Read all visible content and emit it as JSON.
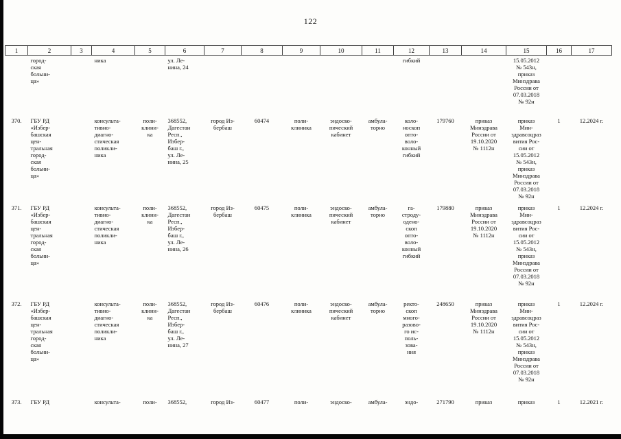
{
  "page": {
    "number": "122"
  },
  "table": {
    "header": [
      "1",
      "2",
      "3",
      "4",
      "5",
      "6",
      "7",
      "8",
      "9",
      "10",
      "11",
      "12",
      "13",
      "14",
      "15",
      "16",
      "17"
    ],
    "rows": [
      {
        "name": "row-369-continued",
        "cells": [
          "",
          "город-\nская\nбольни-\nца»",
          "",
          "ника",
          "",
          "ул. Ле-\nнина, 24",
          "",
          "",
          "",
          "",
          "",
          "гибкий",
          "",
          "",
          "15.05.2012\n№ 543н,\nприказ\nМинздрава\nРоссии от\n07.03.2018\n№ 92н",
          "",
          ""
        ]
      },
      {
        "name": "row-370",
        "cells": [
          "370.",
          "ГБУ РД\n«Избер-\nбашская\nцен-\nтральная\nгород-\nская\nбольни-\nца»",
          "",
          "консульта-\nтивно-\nдиагно-\nстическая\nполикли-\nника",
          "поли-\nклини-\nка",
          "368552,\nДагестан\nРесп.,\nИзбер-\nбаш г.,\nул. Ле-\nнина, 25",
          "город Из-\nбербаш",
          "60474",
          "поли-\nклиника",
          "эндоско-\nпический\nкабинет",
          "амбула-\nторно",
          "коло-\nноскоп\nопто-\nволо-\nконный\nгибкий",
          "179760",
          "приказ\nМинздрава\nРоссии от\n19.10.2020\n№ 1112н",
          "приказ\nМин-\nздравсоцраз\nвития Рос-\nсии от\n15.05.2012\n№ 543н,\nприказ\nМинздрава\nРоссии от\n07.03.2018\n№ 92н",
          "1",
          "12.2024 г."
        ]
      },
      {
        "name": "row-371",
        "cells": [
          "371.",
          "ГБУ РД\n«Избер-\nбашская\nцен-\nтральная\nгород-\nская\nбольни-\nца»",
          "",
          "консульта-\nтивно-\nдиагно-\nстическая\nполикли-\nника",
          "поли-\nклини-\nка",
          "368552,\nДагестан\nРесп.,\nИзбер-\nбаш г.,\nул. Ле-\nнина, 26",
          "город Из-\nбербаш",
          "60475",
          "поли-\nклиника",
          "эндоско-\nпический\nкабинет",
          "амбула-\nторно",
          "га-\nстроду-\nодено-\nскоп\nопто-\nволо-\nконный\nгибкий",
          "179880",
          "приказ\nМинздрава\nРоссии от\n19.10.2020\n№ 1112н",
          "приказ\nМин-\nздравсоцраз\nвития Рос-\nсии от\n15.05.2012\n№ 543н,\nприказ\nМинздрава\nРоссии от\n07.03.2018\n№ 92н",
          "1",
          "12.2024 г."
        ]
      },
      {
        "name": "row-372",
        "cells": [
          "372.",
          "ГБУ РД\n«Избер-\nбашская\nцен-\nтральная\nгород-\nская\nбольни-\nца»",
          "",
          "консульта-\nтивно-\nдиагно-\nстическая\nполикли-\nника",
          "поли-\nклини-\nка",
          "368552,\nДагестан\nРесп.,\nИзбер-\nбаш г.,\nул. Ле-\nнина, 27",
          "город Из-\nбербаш",
          "60476",
          "поли-\nклиника",
          "эндоско-\nпический\nкабинет",
          "амбула-\nторно",
          "ректо-\nскоп\nмного-\nразово-\nго ис-\nполь-\nзова-\nния",
          "248650",
          "приказ\nМинздрава\nРоссии от\n19.10.2020\n№ 1112н",
          "приказ\nМин-\nздравсоцраз\nвития Рос-\nсии от\n15.05.2012\n№ 543н,\nприказ\nМинздрава\nРоссии от\n07.03.2018\n№ 92н",
          "1",
          "12.2024 г."
        ]
      },
      {
        "name": "row-373-partial",
        "cells": [
          "373.",
          "ГБУ РД",
          "",
          "консульта-",
          "поли-",
          "368552,",
          "город Из-",
          "60477",
          "поли-",
          "эндоско-",
          "амбула-",
          "эндо-",
          "271790",
          "приказ",
          "приказ",
          "1",
          "12.2021 г."
        ]
      }
    ]
  }
}
